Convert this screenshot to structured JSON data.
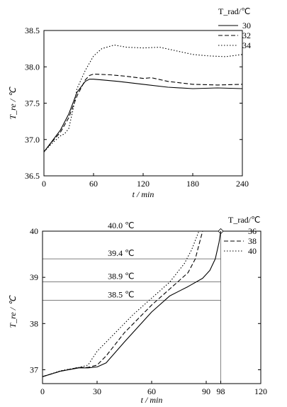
{
  "chart_data": [
    {
      "type": "line",
      "xlabel": "t / min",
      "ylabel": "T_re / ℃",
      "xlim": [
        0,
        240
      ],
      "ylim": [
        36.5,
        38.5
      ],
      "xticks": [
        0,
        60,
        120,
        180,
        240
      ],
      "yticks": [
        36.5,
        37.0,
        37.5,
        38.0,
        38.5
      ],
      "xtick_labels": [
        "0",
        "60",
        "120",
        "180",
        "240"
      ],
      "ytick_labels": [
        "36.5",
        "37.0",
        "37.5",
        "38.0",
        "38.5"
      ],
      "legend_title": "T_rad/℃",
      "legend_position": "top-right",
      "series": [
        {
          "name": "30",
          "style": "solid",
          "x": [
            0,
            10,
            20,
            30,
            40,
            50,
            55,
            60,
            70,
            90,
            120,
            150,
            180,
            210,
            240
          ],
          "y": [
            36.83,
            36.98,
            37.13,
            37.35,
            37.65,
            37.8,
            37.83,
            37.83,
            37.82,
            37.8,
            37.76,
            37.72,
            37.7,
            37.71,
            37.7
          ]
        },
        {
          "name": "32",
          "style": "dashed",
          "x": [
            0,
            10,
            20,
            30,
            40,
            50,
            55,
            60,
            80,
            100,
            120,
            130,
            150,
            180,
            210,
            240
          ],
          "y": [
            36.83,
            36.97,
            37.1,
            37.3,
            37.6,
            37.82,
            37.88,
            37.9,
            37.89,
            37.87,
            37.84,
            37.85,
            37.8,
            37.76,
            37.75,
            37.76
          ]
        },
        {
          "name": "34",
          "style": "dotted",
          "x": [
            0,
            10,
            20,
            25,
            30,
            35,
            40,
            50,
            60,
            70,
            85,
            100,
            120,
            140,
            160,
            180,
            200,
            220,
            240
          ],
          "y": [
            36.83,
            36.95,
            37.05,
            37.08,
            37.15,
            37.4,
            37.7,
            37.95,
            38.15,
            38.25,
            38.3,
            38.27,
            38.26,
            38.27,
            38.22,
            38.17,
            38.15,
            38.14,
            38.17
          ]
        }
      ]
    },
    {
      "type": "line",
      "xlabel": "t / min",
      "ylabel": "T_re / ℃",
      "xlim": [
        0,
        120
      ],
      "ylim": [
        36.7,
        40
      ],
      "xticks": [
        0,
        30,
        60,
        90,
        98,
        120
      ],
      "yticks": [
        37,
        38,
        39,
        40
      ],
      "xtick_labels": [
        "0",
        "30",
        "60",
        "90",
        "98",
        "120"
      ],
      "ytick_labels": [
        "37",
        "38",
        "39",
        "40"
      ],
      "legend_title": "T_rad/℃",
      "legend_position": "top-right",
      "reference_lines": [
        {
          "y": 40.0,
          "label": "40.0 ℃"
        },
        {
          "y": 39.4,
          "label": "39.4 ℃"
        },
        {
          "y": 38.9,
          "label": "38.9 ℃"
        },
        {
          "y": 38.5,
          "label": "38.5 ℃"
        }
      ],
      "vertical_marker": {
        "x": 98,
        "y": 40.0
      },
      "series": [
        {
          "name": "36",
          "style": "solid",
          "x": [
            0,
            10,
            20,
            25,
            30,
            35,
            45,
            60,
            70,
            80,
            88,
            92,
            95,
            97,
            98
          ],
          "y": [
            36.85,
            36.97,
            37.04,
            37.04,
            37.06,
            37.15,
            37.6,
            38.25,
            38.6,
            38.8,
            38.98,
            39.15,
            39.4,
            39.75,
            40.0
          ]
        },
        {
          "name": "38",
          "style": "dashed",
          "x": [
            0,
            10,
            20,
            25,
            30,
            35,
            45,
            60,
            70,
            80,
            84,
            86,
            88
          ],
          "y": [
            36.85,
            36.97,
            37.05,
            37.05,
            37.1,
            37.3,
            37.8,
            38.4,
            38.75,
            39.1,
            39.4,
            39.7,
            40.0
          ]
        },
        {
          "name": "40",
          "style": "dotted",
          "x": [
            0,
            10,
            20,
            25,
            30,
            40,
            50,
            60,
            70,
            78,
            82,
            84,
            86
          ],
          "y": [
            36.85,
            36.98,
            37.05,
            37.1,
            37.4,
            37.8,
            38.2,
            38.55,
            38.9,
            39.3,
            39.6,
            39.8,
            40.0
          ]
        }
      ]
    }
  ]
}
